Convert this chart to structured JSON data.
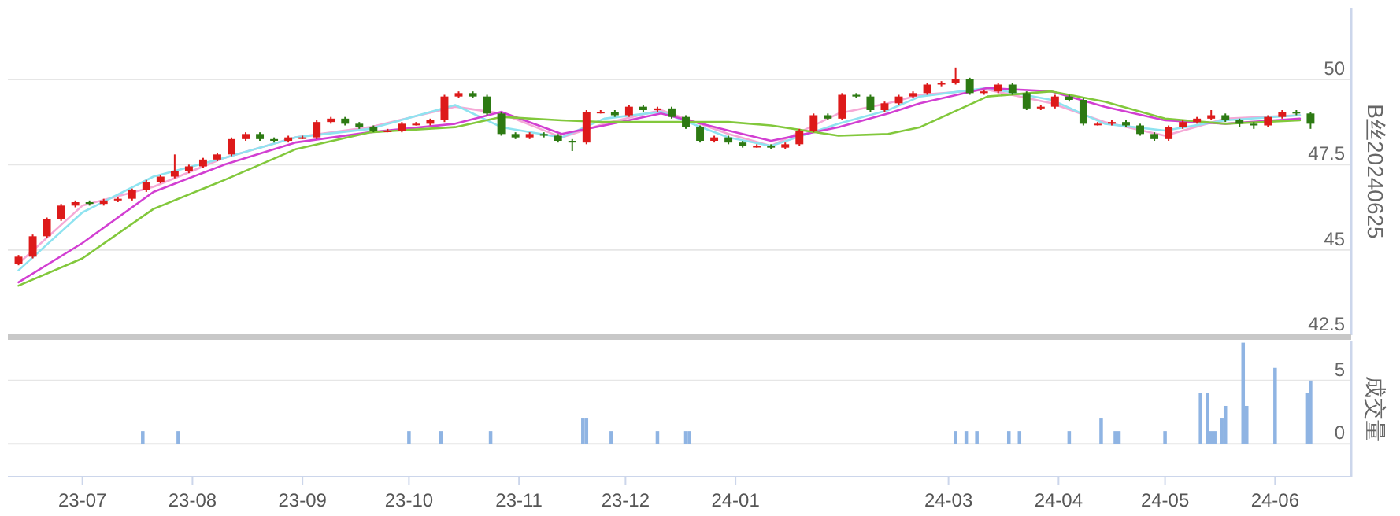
{
  "chart_data": [
    {
      "type": "candlestick",
      "ylabel": "B丝20240625",
      "xlim": [
        "2023-06-10",
        "2024-06-22"
      ],
      "ylim": [
        42.5,
        52.1
      ],
      "yticks": [
        42.5,
        45,
        47.5,
        50
      ],
      "grid": "y",
      "tick_labels": "y",
      "x": [
        "2023-06-13",
        "2023-06-17",
        "2023-06-21",
        "2023-06-25",
        "2023-06-29",
        "2023-07-03",
        "2023-07-07",
        "2023-07-11",
        "2023-07-15",
        "2023-07-19",
        "2023-07-23",
        "2023-07-27",
        "2023-07-31",
        "2023-08-04",
        "2023-08-08",
        "2023-08-12",
        "2023-08-16",
        "2023-08-20",
        "2023-08-24",
        "2023-08-28",
        "2023-09-01",
        "2023-09-05",
        "2023-09-09",
        "2023-09-13",
        "2023-09-17",
        "2023-09-21",
        "2023-09-25",
        "2023-09-29",
        "2023-10-03",
        "2023-10-07",
        "2023-10-11",
        "2023-10-15",
        "2023-10-19",
        "2023-10-23",
        "2023-10-27",
        "2023-10-31",
        "2023-11-04",
        "2023-11-08",
        "2023-11-12",
        "2023-11-16",
        "2023-11-20",
        "2023-11-24",
        "2023-11-28",
        "2023-12-02",
        "2023-12-06",
        "2023-12-10",
        "2023-12-14",
        "2023-12-18",
        "2023-12-22",
        "2023-12-26",
        "2023-12-30",
        "2024-01-03",
        "2024-01-07",
        "2024-01-11",
        "2024-01-15",
        "2024-01-19",
        "2024-01-23",
        "2024-01-27",
        "2024-01-31",
        "2024-02-04",
        "2024-02-08",
        "2024-02-12",
        "2024-02-16",
        "2024-02-20",
        "2024-02-24",
        "2024-02-28",
        "2024-03-03",
        "2024-03-07",
        "2024-03-11",
        "2024-03-15",
        "2024-03-19",
        "2024-03-23",
        "2024-03-27",
        "2024-03-31",
        "2024-04-04",
        "2024-04-08",
        "2024-04-12",
        "2024-04-16",
        "2024-04-20",
        "2024-04-24",
        "2024-04-28",
        "2024-05-02",
        "2024-05-06",
        "2024-05-10",
        "2024-05-14",
        "2024-05-18",
        "2024-05-22",
        "2024-05-26",
        "2024-05-30",
        "2024-06-03",
        "2024-06-07",
        "2024-06-11"
      ],
      "ohlc": [
        [
          44.6,
          44.85,
          44.55,
          44.8
        ],
        [
          44.8,
          45.45,
          44.75,
          45.4
        ],
        [
          45.4,
          45.95,
          45.35,
          45.9
        ],
        [
          45.9,
          46.35,
          45.85,
          46.3
        ],
        [
          46.3,
          46.45,
          46.25,
          46.4
        ],
        [
          46.4,
          46.45,
          46.3,
          46.35
        ],
        [
          46.35,
          46.5,
          46.3,
          46.45
        ],
        [
          46.45,
          46.55,
          46.4,
          46.5
        ],
        [
          46.5,
          46.8,
          46.45,
          46.75
        ],
        [
          46.75,
          47.05,
          46.7,
          47.0
        ],
        [
          47.0,
          47.2,
          46.95,
          47.15
        ],
        [
          47.15,
          47.8,
          47.1,
          47.3
        ],
        [
          47.3,
          47.5,
          47.25,
          47.45
        ],
        [
          47.45,
          47.7,
          47.4,
          47.65
        ],
        [
          47.65,
          47.85,
          47.6,
          47.8
        ],
        [
          47.8,
          48.3,
          47.75,
          48.25
        ],
        [
          48.25,
          48.45,
          48.2,
          48.4
        ],
        [
          48.4,
          48.45,
          48.2,
          48.25
        ],
        [
          48.25,
          48.3,
          48.15,
          48.2
        ],
        [
          48.2,
          48.35,
          48.15,
          48.3
        ],
        [
          48.3,
          48.35,
          48.25,
          48.3
        ],
        [
          48.3,
          48.8,
          48.25,
          48.75
        ],
        [
          48.75,
          48.9,
          48.7,
          48.85
        ],
        [
          48.85,
          48.9,
          48.65,
          48.7
        ],
        [
          48.7,
          48.75,
          48.55,
          48.6
        ],
        [
          48.6,
          48.65,
          48.45,
          48.5
        ],
        [
          48.5,
          48.55,
          48.45,
          48.5
        ],
        [
          48.5,
          48.75,
          48.45,
          48.7
        ],
        [
          48.7,
          48.75,
          48.65,
          48.7
        ],
        [
          48.7,
          48.85,
          48.65,
          48.8
        ],
        [
          48.8,
          49.55,
          48.75,
          49.5
        ],
        [
          49.5,
          49.65,
          49.45,
          49.6
        ],
        [
          49.6,
          49.65,
          49.45,
          49.5
        ],
        [
          49.5,
          49.55,
          48.95,
          49.0
        ],
        [
          49.0,
          49.05,
          48.35,
          48.4
        ],
        [
          48.4,
          48.45,
          48.25,
          48.3
        ],
        [
          48.3,
          48.45,
          48.25,
          48.4
        ],
        [
          48.4,
          48.45,
          48.3,
          48.35
        ],
        [
          48.35,
          48.4,
          48.15,
          48.2
        ],
        [
          48.2,
          48.25,
          47.9,
          48.15
        ],
        [
          48.15,
          49.1,
          48.1,
          49.05
        ],
        [
          49.05,
          49.1,
          49.0,
          49.05
        ],
        [
          49.05,
          49.1,
          48.9,
          48.95
        ],
        [
          48.95,
          49.25,
          48.9,
          49.2
        ],
        [
          49.2,
          49.25,
          49.05,
          49.1
        ],
        [
          49.1,
          49.2,
          49.05,
          49.15
        ],
        [
          49.15,
          49.2,
          48.85,
          48.9
        ],
        [
          48.9,
          48.95,
          48.55,
          48.6
        ],
        [
          48.6,
          48.65,
          48.15,
          48.2
        ],
        [
          48.2,
          48.35,
          48.15,
          48.3
        ],
        [
          48.3,
          48.35,
          48.1,
          48.15
        ],
        [
          48.15,
          48.2,
          48.0,
          48.05
        ],
        [
          48.05,
          48.1,
          48.0,
          48.05
        ],
        [
          48.05,
          48.1,
          47.95,
          48.0
        ],
        [
          48.0,
          48.15,
          47.95,
          48.1
        ],
        [
          48.1,
          48.55,
          48.05,
          48.5
        ],
        [
          48.5,
          49.0,
          48.45,
          48.95
        ],
        [
          48.95,
          49.0,
          48.8,
          48.85
        ],
        [
          48.85,
          49.6,
          48.8,
          49.55
        ],
        [
          49.55,
          49.6,
          49.45,
          49.5
        ],
        [
          49.5,
          49.55,
          49.05,
          49.1
        ],
        [
          49.1,
          49.35,
          49.05,
          49.3
        ],
        [
          49.3,
          49.55,
          49.25,
          49.5
        ],
        [
          49.5,
          49.65,
          49.45,
          49.6
        ],
        [
          49.6,
          49.9,
          49.55,
          49.85
        ],
        [
          49.85,
          49.95,
          49.8,
          49.9
        ],
        [
          49.9,
          50.35,
          49.85,
          50.0
        ],
        [
          50.0,
          50.05,
          49.55,
          49.6
        ],
        [
          49.6,
          49.7,
          49.55,
          49.65
        ],
        [
          49.65,
          49.9,
          49.6,
          49.85
        ],
        [
          49.85,
          49.9,
          49.55,
          49.6
        ],
        [
          49.6,
          49.65,
          49.1,
          49.15
        ],
        [
          49.15,
          49.25,
          49.1,
          49.2
        ],
        [
          49.2,
          49.55,
          49.15,
          49.5
        ],
        [
          49.5,
          49.55,
          49.35,
          49.4
        ],
        [
          49.4,
          49.45,
          48.65,
          48.7
        ],
        [
          48.7,
          48.75,
          48.65,
          48.7
        ],
        [
          48.7,
          48.8,
          48.65,
          48.75
        ],
        [
          48.75,
          48.8,
          48.6,
          48.65
        ],
        [
          48.65,
          48.7,
          48.35,
          48.4
        ],
        [
          48.4,
          48.45,
          48.2,
          48.25
        ],
        [
          48.25,
          48.65,
          48.2,
          48.6
        ],
        [
          48.6,
          48.8,
          48.55,
          48.75
        ],
        [
          48.75,
          48.9,
          48.7,
          48.85
        ],
        [
          48.85,
          49.1,
          48.8,
          48.95
        ],
        [
          48.95,
          49.0,
          48.75,
          48.8
        ],
        [
          48.8,
          48.85,
          48.6,
          48.7
        ],
        [
          48.7,
          48.75,
          48.55,
          48.65
        ],
        [
          48.65,
          48.95,
          48.6,
          48.9
        ],
        [
          48.9,
          49.1,
          48.85,
          49.05
        ],
        [
          49.05,
          49.1,
          48.95,
          49.0
        ],
        [
          49.0,
          49.05,
          48.55,
          48.7
        ]
      ],
      "series": [
        {
          "type": "line",
          "color": "#f5a9d6",
          "x": [
            "2023-06-13",
            "2023-07-01",
            "2023-07-21",
            "2023-08-10",
            "2023-08-30",
            "2023-09-20",
            "2023-10-14",
            "2023-10-27",
            "2023-11-13",
            "2023-11-25",
            "2023-12-11",
            "2023-12-30",
            "2024-01-11",
            "2024-01-30",
            "2024-02-13",
            "2024-02-22",
            "2024-03-12",
            "2024-03-30",
            "2024-04-14",
            "2024-05-01",
            "2024-05-18",
            "2024-06-08"
          ],
          "values": [
            44.6,
            46.3,
            46.85,
            47.7,
            48.3,
            48.6,
            49.2,
            49.0,
            48.3,
            48.7,
            49.1,
            48.4,
            48.05,
            49.0,
            49.3,
            49.55,
            49.7,
            49.3,
            48.75,
            48.35,
            48.85,
            48.95
          ]
        },
        {
          "type": "line",
          "color": "#8fe3f0",
          "x": [
            "2023-06-13",
            "2023-07-01",
            "2023-07-21",
            "2023-08-10",
            "2023-08-30",
            "2023-09-20",
            "2023-10-14",
            "2023-10-27",
            "2023-11-13",
            "2023-11-25",
            "2023-12-11",
            "2023-12-30",
            "2024-01-11",
            "2024-01-30",
            "2024-02-13",
            "2024-02-22",
            "2024-03-12",
            "2024-03-30",
            "2024-04-14",
            "2024-05-01",
            "2024-05-18",
            "2024-06-08"
          ],
          "values": [
            44.4,
            46.1,
            47.15,
            47.7,
            48.3,
            48.55,
            49.25,
            48.6,
            48.3,
            48.85,
            49.05,
            48.3,
            48.05,
            48.7,
            49.1,
            49.5,
            49.75,
            49.4,
            48.7,
            48.5,
            48.8,
            48.95
          ]
        },
        {
          "type": "line",
          "color": "#d23fd2",
          "x": [
            "2023-06-13",
            "2023-07-01",
            "2023-07-21",
            "2023-08-10",
            "2023-08-30",
            "2023-09-20",
            "2023-10-14",
            "2023-10-27",
            "2023-11-13",
            "2023-11-25",
            "2023-12-11",
            "2023-12-30",
            "2024-01-11",
            "2024-01-30",
            "2024-02-13",
            "2024-02-22",
            "2024-03-12",
            "2024-03-30",
            "2024-04-14",
            "2024-05-01",
            "2024-05-18",
            "2024-06-08"
          ],
          "values": [
            44.05,
            45.2,
            46.7,
            47.5,
            48.15,
            48.45,
            48.7,
            49.05,
            48.4,
            48.65,
            49.0,
            48.5,
            48.2,
            48.6,
            49.0,
            49.3,
            49.75,
            49.65,
            49.2,
            48.8,
            48.7,
            48.85
          ]
        },
        {
          "type": "line",
          "color": "#82c83c",
          "x": [
            "2023-06-13",
            "2023-07-01",
            "2023-07-21",
            "2023-08-10",
            "2023-08-30",
            "2023-09-20",
            "2023-10-14",
            "2023-10-27",
            "2023-11-13",
            "2023-11-25",
            "2023-12-11",
            "2023-12-30",
            "2024-01-11",
            "2024-01-30",
            "2024-02-13",
            "2024-02-22",
            "2024-03-12",
            "2024-03-30",
            "2024-04-14",
            "2024-05-01",
            "2024-05-18",
            "2024-06-08"
          ],
          "values": [
            43.95,
            44.75,
            46.2,
            47.05,
            47.95,
            48.45,
            48.6,
            48.9,
            48.8,
            48.75,
            48.75,
            48.75,
            48.65,
            48.35,
            48.4,
            48.6,
            49.5,
            49.65,
            49.35,
            48.85,
            48.7,
            48.8
          ]
        }
      ]
    },
    {
      "type": "bar",
      "ylabel": "成交量",
      "color": "#8fb4e3",
      "xlim": [
        "2023-06-10",
        "2024-06-22"
      ],
      "ylim": [
        -2.6,
        8.1
      ],
      "yticks": [
        0,
        5
      ],
      "grid": "y",
      "xticks": [
        {
          "value": "2023-07-01",
          "label": "23-07"
        },
        {
          "value": "2023-08-01",
          "label": "23-08"
        },
        {
          "value": "2023-09-01",
          "label": "23-09"
        },
        {
          "value": "2023-10-01",
          "label": "23-10"
        },
        {
          "value": "2023-11-01",
          "label": "23-11"
        },
        {
          "value": "2023-12-01",
          "label": "23-12"
        },
        {
          "value": "2024-01-01",
          "label": "24-01"
        },
        {
          "value": "2024-03-01",
          "label": "24-03"
        },
        {
          "value": "2024-04-01",
          "label": "24-04"
        },
        {
          "value": "2024-05-01",
          "label": "24-05"
        },
        {
          "value": "2024-06-01",
          "label": "24-06"
        }
      ],
      "x": [
        "2023-07-18",
        "2023-07-28",
        "2023-10-01",
        "2023-10-10",
        "2023-10-24",
        "2023-11-19",
        "2023-11-20",
        "2023-11-27",
        "2023-12-10",
        "2023-12-18",
        "2023-12-19",
        "2024-03-03",
        "2024-03-06",
        "2024-03-09",
        "2024-03-18",
        "2024-03-21",
        "2024-04-04",
        "2024-04-13",
        "2024-04-17",
        "2024-04-18",
        "2024-05-01",
        "2024-05-11",
        "2024-05-13",
        "2024-05-14",
        "2024-05-15",
        "2024-05-17",
        "2024-05-18",
        "2024-05-23",
        "2024-05-24",
        "2024-06-01",
        "2024-06-10",
        "2024-06-11"
      ],
      "values": [
        1,
        1,
        1,
        1,
        1,
        2,
        2,
        1,
        1,
        1,
        1,
        1,
        1,
        1,
        1,
        1,
        1,
        2,
        1,
        1,
        1,
        4,
        4,
        1,
        1,
        2,
        3,
        8,
        3,
        6,
        4,
        5
      ]
    }
  ]
}
